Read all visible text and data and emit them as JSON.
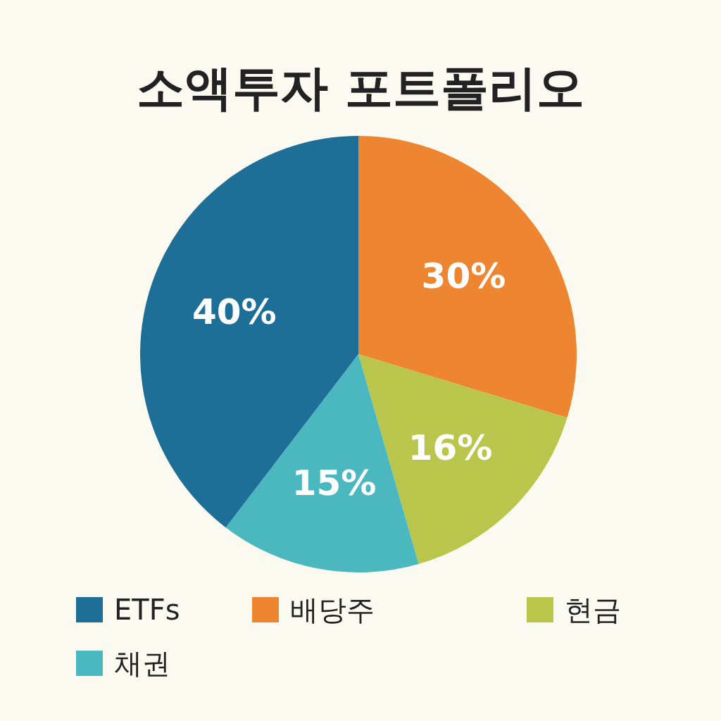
{
  "chart_data": {
    "type": "pie",
    "title": "소액투자 포트폴리오",
    "categories": [
      "ETFs",
      "배당주",
      "현금",
      "채권"
    ],
    "values": [
      40,
      30,
      16,
      15
    ],
    "colors": [
      "#1e6f98",
      "#ee8531",
      "#b9c64b",
      "#4bb8c0"
    ],
    "value_labels": [
      "40%",
      "30%",
      "16%",
      "15%"
    ],
    "legend": "bottom"
  }
}
